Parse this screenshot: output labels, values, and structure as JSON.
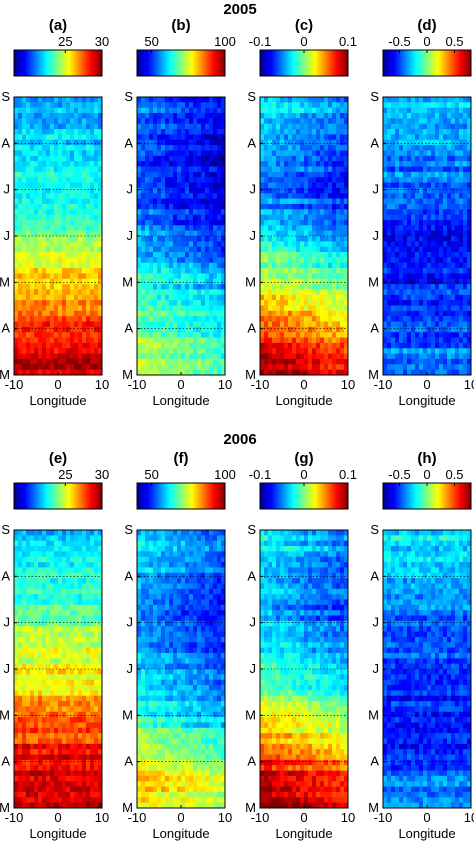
{
  "figure": {
    "year_labels": [
      "2005",
      "2006"
    ]
  },
  "chart_data": [
    {
      "type": "heatmap",
      "panel": "(a)",
      "year": "2005",
      "colorbar": {
        "ticks": [
          "25",
          "30"
        ],
        "range": [
          18,
          30
        ],
        "colormap": "jet"
      },
      "x": {
        "label": "Longitude",
        "range": [
          -10,
          10
        ],
        "ticks": [
          "-10",
          "0",
          "10"
        ]
      },
      "y": {
        "ticks": [
          "M",
          "A",
          "M",
          "J",
          "J",
          "A",
          "S"
        ]
      },
      "trend": "warm (red) in spring months near bottom, cooling to cyan/blue toward top (Aug-Sep)",
      "profile": [
        0.95,
        0.88,
        0.8,
        0.68,
        0.55,
        0.45,
        0.38,
        0.34,
        0.33,
        0.32
      ]
    },
    {
      "type": "heatmap",
      "panel": "(b)",
      "year": "2005",
      "colorbar": {
        "ticks": [
          "50",
          "100"
        ],
        "range": [
          40,
          100
        ],
        "colormap": "jet"
      },
      "x": {
        "label": "Longitude",
        "range": [
          -10,
          10
        ],
        "ticks": [
          "-10",
          "0",
          "10"
        ]
      },
      "y": {
        "ticks": [
          "M",
          "A",
          "M",
          "J",
          "J",
          "A",
          "S"
        ]
      },
      "trend": "moderate values in spring, low (blue) values from June to September especially east of 0",
      "profile": [
        0.5,
        0.48,
        0.42,
        0.35,
        0.25,
        0.18,
        0.14,
        0.15,
        0.17,
        0.22
      ]
    },
    {
      "type": "heatmap",
      "panel": "(c)",
      "year": "2005",
      "colorbar": {
        "ticks": [
          "-0.1",
          "0",
          "0.1"
        ],
        "range": [
          -0.1,
          0.1
        ],
        "colormap": "jet"
      },
      "x": {
        "label": "Longitude",
        "range": [
          -10,
          10
        ],
        "ticks": [
          "-10",
          "0",
          "10"
        ]
      },
      "y": {
        "ticks": [
          "M",
          "A",
          "M",
          "J",
          "J",
          "A",
          "S"
        ]
      },
      "trend": "positive (red) in spring near bottom, negative (blue) in summer with diagonal band",
      "profile": [
        0.92,
        0.82,
        0.7,
        0.55,
        0.38,
        0.26,
        0.2,
        0.22,
        0.28,
        0.33
      ]
    },
    {
      "type": "heatmap",
      "panel": "(d)",
      "year": "2005",
      "colorbar": {
        "ticks": [
          "-0.5",
          "0",
          "0.5"
        ],
        "range": [
          -0.8,
          0.8
        ],
        "colormap": "jet"
      },
      "x": {
        "label": "Longitude",
        "range": [
          -10,
          10
        ],
        "ticks": [
          "-10",
          "0",
          "10"
        ]
      },
      "y": {
        "ticks": [
          "M",
          "A",
          "M",
          "J",
          "J",
          "A",
          "S"
        ]
      },
      "trend": "mostly blue/cyan with streaky horizontal noise, lowest in June-July",
      "profile": [
        0.28,
        0.22,
        0.18,
        0.15,
        0.14,
        0.16,
        0.22,
        0.26,
        0.3,
        0.33
      ]
    },
    {
      "type": "heatmap",
      "panel": "(e)",
      "year": "2006",
      "colorbar": {
        "ticks": [
          "25",
          "30"
        ],
        "range": [
          18,
          30
        ],
        "colormap": "jet"
      },
      "x": {
        "label": "Longitude",
        "range": [
          -10,
          10
        ],
        "ticks": [
          "-10",
          "0",
          "10"
        ]
      },
      "y": {
        "ticks": [
          "M",
          "A",
          "M",
          "J",
          "J",
          "A",
          "S"
        ]
      },
      "trend": "warm (red) in spring near bottom, yellow-orange in June-July, cyan near top",
      "profile": [
        0.97,
        0.92,
        0.85,
        0.76,
        0.65,
        0.58,
        0.5,
        0.42,
        0.37,
        0.34
      ]
    },
    {
      "type": "heatmap",
      "panel": "(f)",
      "year": "2006",
      "colorbar": {
        "ticks": [
          "50",
          "100"
        ],
        "range": [
          40,
          100
        ],
        "colormap": "jet"
      },
      "x": {
        "label": "Longitude",
        "range": [
          -10,
          10
        ],
        "ticks": [
          "-10",
          "0",
          "10"
        ]
      },
      "y": {
        "ticks": [
          "M",
          "A",
          "M",
          "J",
          "J",
          "A",
          "S"
        ]
      },
      "trend": "yellow-orange in April, blue patches in summer, cyan-green at top",
      "profile": [
        0.55,
        0.65,
        0.48,
        0.36,
        0.28,
        0.25,
        0.22,
        0.24,
        0.28,
        0.3
      ]
    },
    {
      "type": "heatmap",
      "panel": "(g)",
      "year": "2006",
      "colorbar": {
        "ticks": [
          "-0.1",
          "0",
          "0.1"
        ],
        "range": [
          -0.1,
          0.1
        ],
        "colormap": "jet"
      },
      "x": {
        "label": "Longitude",
        "range": [
          -10,
          10
        ],
        "ticks": [
          "-10",
          "0",
          "10"
        ]
      },
      "y": {
        "ticks": [
          "M",
          "A",
          "M",
          "J",
          "J",
          "A",
          "S"
        ]
      },
      "trend": "positive (red) in spring, negative (blue) in summer, diagonal transition",
      "profile": [
        0.94,
        0.85,
        0.72,
        0.56,
        0.42,
        0.32,
        0.26,
        0.26,
        0.3,
        0.34
      ]
    },
    {
      "type": "heatmap",
      "panel": "(h)",
      "year": "2006",
      "colorbar": {
        "ticks": [
          "-0.5",
          "0",
          "0.5"
        ],
        "range": [
          -0.8,
          0.8
        ],
        "colormap": "jet"
      },
      "x": {
        "label": "Longitude",
        "range": [
          -10,
          10
        ],
        "ticks": [
          "-10",
          "0",
          "10"
        ]
      },
      "y": {
        "ticks": [
          "M",
          "A",
          "M",
          "J",
          "J",
          "A",
          "S"
        ]
      },
      "trend": "mostly blue with horizontal streaks, cyan/green toward top",
      "profile": [
        0.28,
        0.22,
        0.16,
        0.14,
        0.16,
        0.2,
        0.24,
        0.3,
        0.34,
        0.36
      ]
    }
  ]
}
